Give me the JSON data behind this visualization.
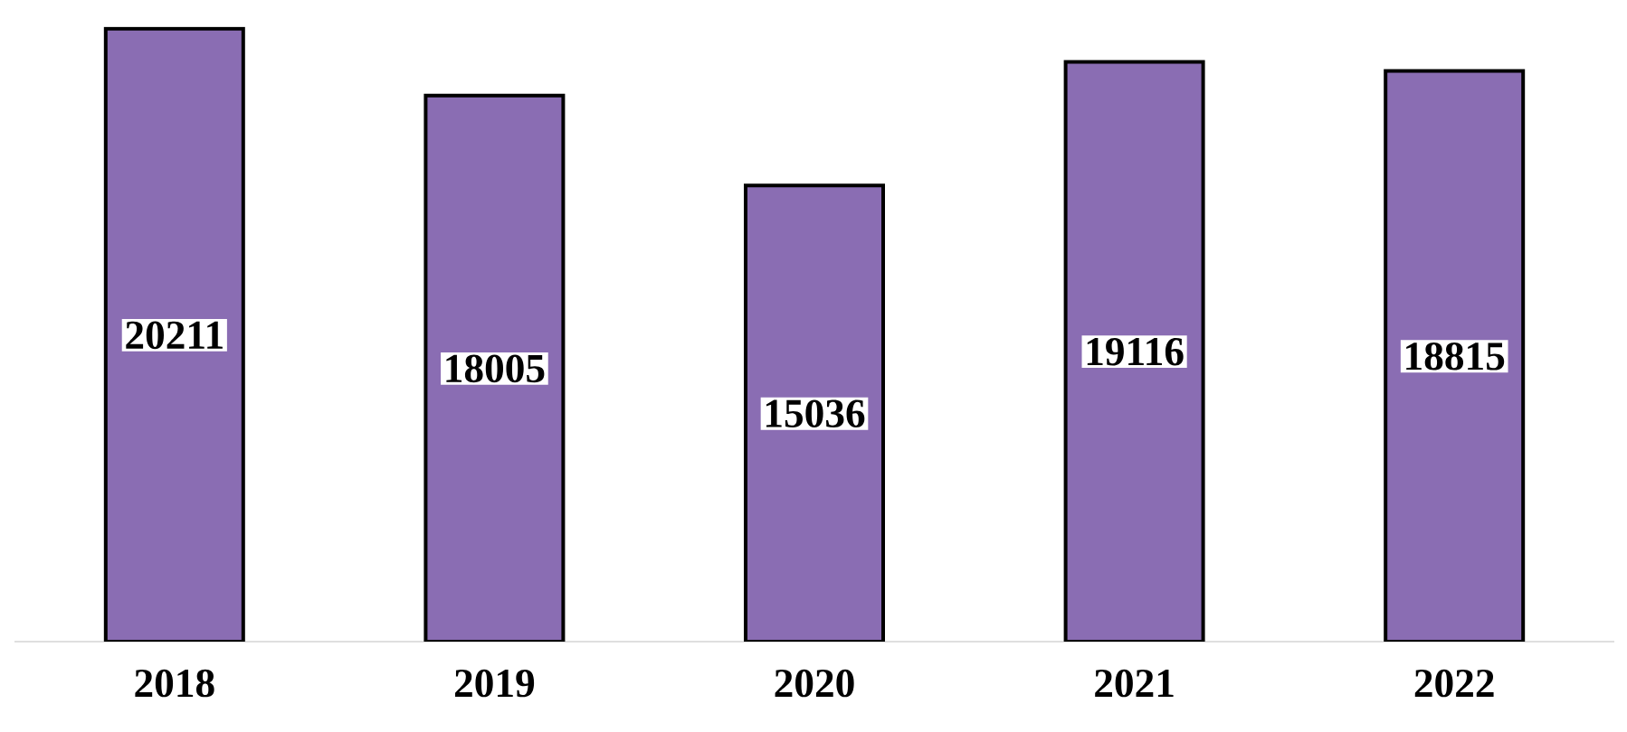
{
  "chart_data": {
    "type": "bar",
    "categories": [
      "2018",
      "2019",
      "2020",
      "2021",
      "2022"
    ],
    "values": [
      20211,
      18005,
      15036,
      19116,
      18815
    ],
    "color": "#8a6db3",
    "data_labels": true
  }
}
